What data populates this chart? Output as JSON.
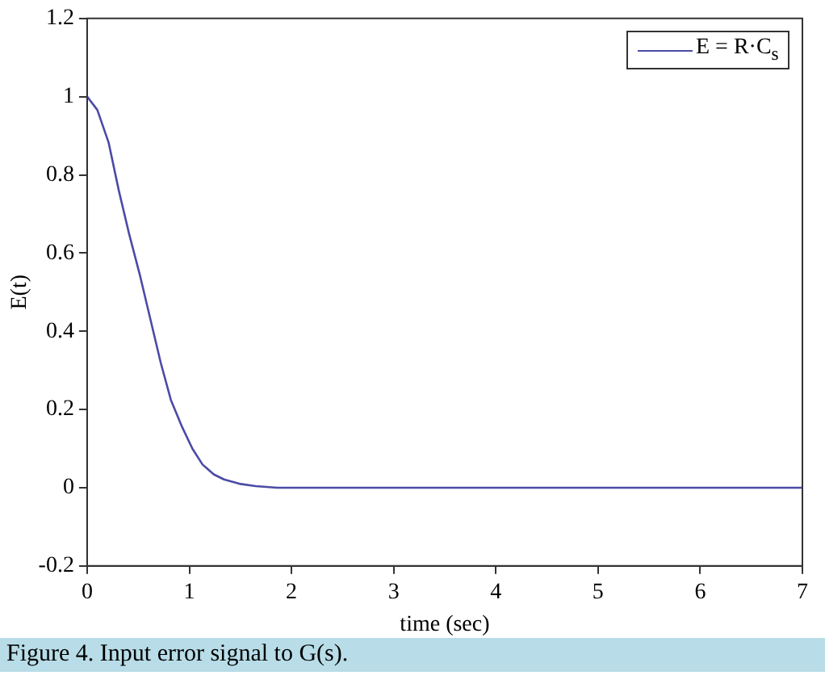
{
  "chart_data": {
    "type": "line",
    "xlabel": "time (sec)",
    "ylabel": "E(t)",
    "x": [
      0,
      0.1,
      0.21,
      0.31,
      0.41,
      0.52,
      0.62,
      0.72,
      0.82,
      0.93,
      1.03,
      1.13,
      1.24,
      1.34,
      1.49,
      1.65,
      1.86,
      2.0,
      3,
      4,
      5,
      6,
      7
    ],
    "series": [
      {
        "name": "E = R·C$_{s}$",
        "color": "#4b4ba6",
        "values": [
          1.0,
          0.966,
          0.883,
          0.76,
          0.65,
          0.54,
          0.43,
          0.32,
          0.224,
          0.155,
          0.1,
          0.059,
          0.034,
          0.021,
          0.01,
          0.004,
          0,
          0,
          0,
          0,
          0,
          0,
          0
        ]
      }
    ],
    "xlim": [
      0,
      7
    ],
    "xticks": [
      0,
      1,
      2,
      3,
      4,
      5,
      6,
      7
    ],
    "ylim": [
      -0.2,
      1.2
    ],
    "yticks": [
      -0.2,
      0,
      0.2,
      0.4,
      0.6,
      0.8,
      1,
      1.2
    ],
    "grid": false,
    "legend": "top right",
    "marker": "none",
    "line_style": "solid",
    "annotations": [
      "Figure 4. Input error signal to G(s)."
    ]
  }
}
